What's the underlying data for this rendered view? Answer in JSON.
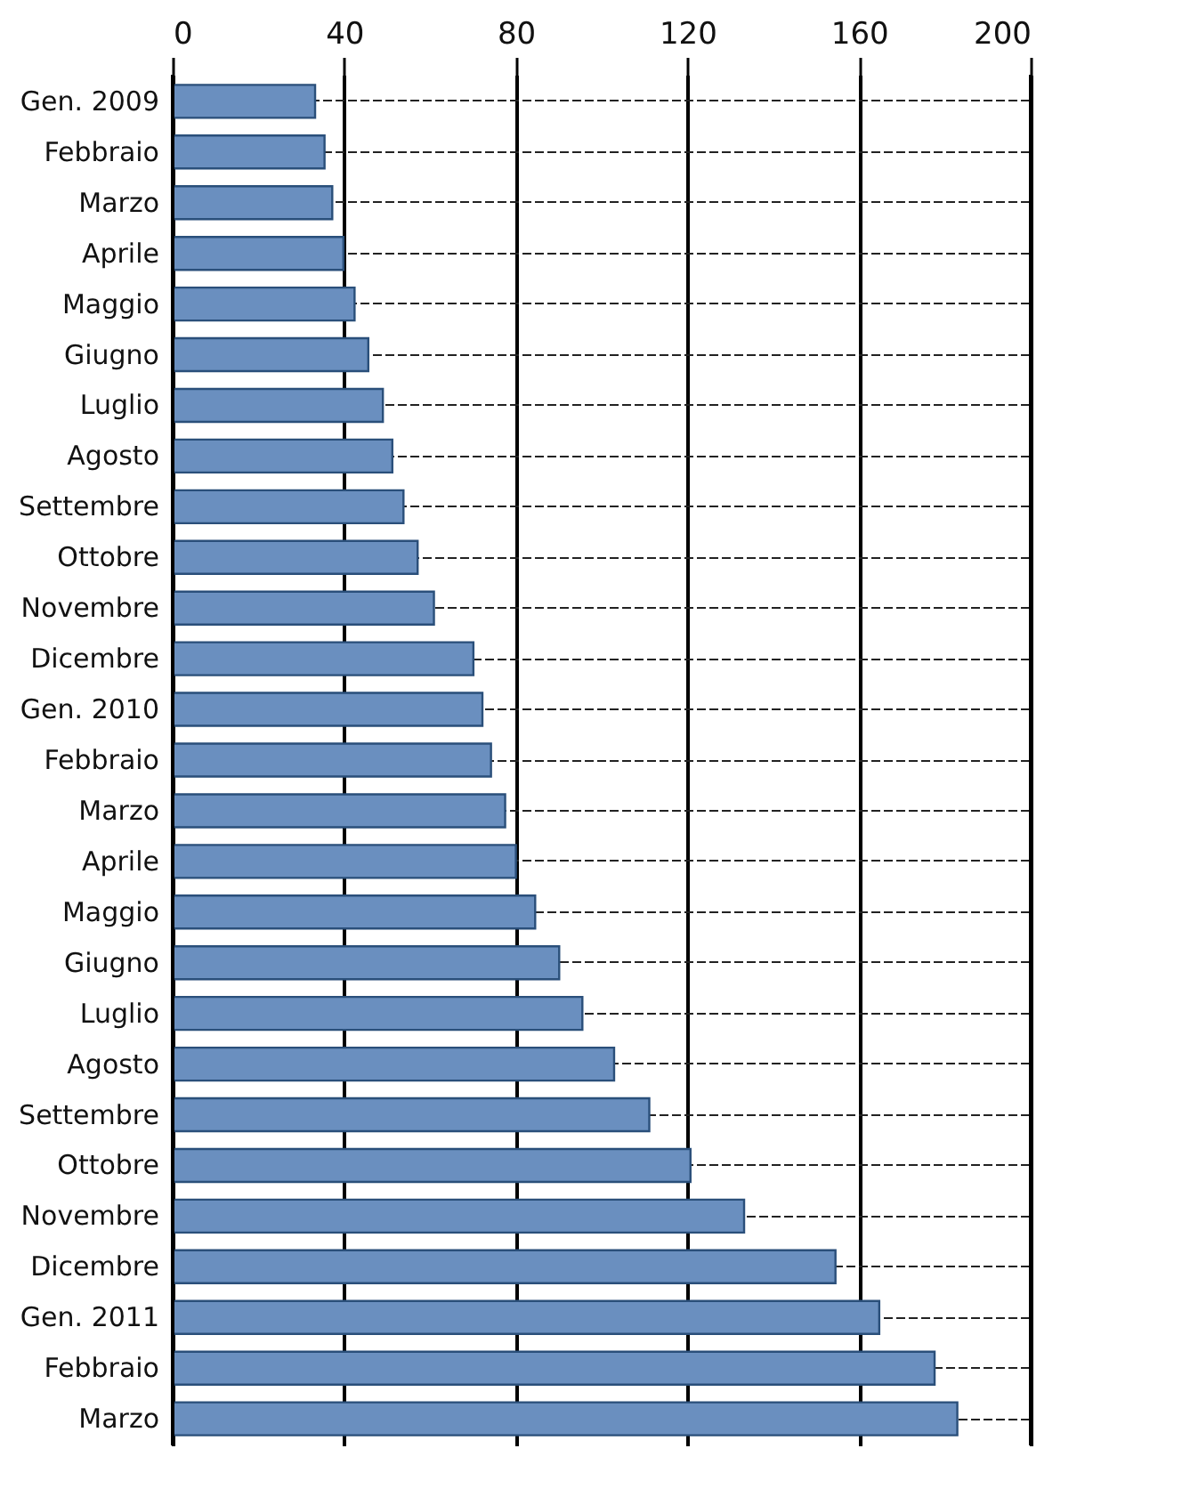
{
  "chart_data": {
    "type": "bar",
    "orientation": "horizontal",
    "categories": [
      "Gen. 2009",
      "Febbraio",
      "Marzo",
      "Aprile",
      "Maggio",
      "Giugno",
      "Luglio",
      "Agosto",
      "Settembre",
      "Ottobre",
      "Novembre",
      "Dicembre",
      "Gen. 2010",
      "Febbraio",
      "Marzo",
      "Aprile",
      "Maggio",
      "Giugno",
      "Luglio",
      "Agosto",
      "Settembre",
      "Ottobre",
      "Novembre",
      "Dicembre",
      "Gen. 2011",
      "Febbraio",
      "Marzo"
    ],
    "values": [
      33.2,
      35.4,
      37.2,
      39.8,
      42.4,
      45.6,
      49.0,
      51.2,
      53.8,
      57.1,
      60.9,
      70.1,
      72.2,
      74.2,
      77.5,
      80.0,
      84.5,
      90.1,
      95.5,
      102.9,
      111.1,
      120.7,
      133.2,
      154.5,
      164.7,
      177.6,
      182.9
    ],
    "color": "#6a8fbf",
    "xlim": [
      0,
      200
    ],
    "xticks": [
      0,
      40,
      80,
      120,
      160,
      200
    ],
    "grid": true
  }
}
